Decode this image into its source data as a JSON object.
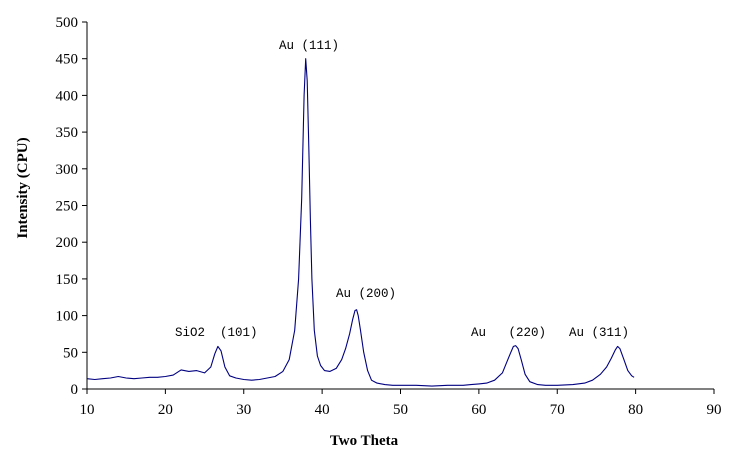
{
  "chart_data": {
    "type": "line",
    "title": "",
    "xlabel": "Two Theta",
    "ylabel": "Intensity (CPU)",
    "xlim": [
      10,
      90
    ],
    "ylim": [
      0,
      500
    ],
    "xticks": [
      10,
      20,
      30,
      40,
      50,
      60,
      70,
      80,
      90
    ],
    "yticks": [
      0,
      50,
      100,
      150,
      200,
      250,
      300,
      350,
      400,
      450,
      500
    ],
    "grid": false,
    "legend": "none",
    "line_color": "#000080",
    "series": [
      {
        "x": [
          10,
          11,
          12,
          13,
          14,
          15,
          16,
          17,
          18,
          19,
          20,
          21,
          22,
          23,
          24,
          25,
          25.8,
          26.3,
          26.7,
          27.1,
          27.6,
          28.2,
          29,
          30,
          31,
          32,
          33,
          34,
          35,
          35.8,
          36.5,
          37,
          37.4,
          37.7,
          37.9,
          38.1,
          38.3,
          38.5,
          38.7,
          39,
          39.4,
          39.8,
          40.3,
          41,
          41.8,
          42.5,
          43,
          43.5,
          43.9,
          44.2,
          44.4,
          44.6,
          44.9,
          45.3,
          45.8,
          46.3,
          47,
          48,
          49,
          50,
          52,
          54,
          56,
          58,
          59,
          60,
          61,
          62,
          63,
          63.5,
          64,
          64.4,
          64.7,
          65,
          65.4,
          65.9,
          66.5,
          67.5,
          68.5,
          70,
          72,
          73.5,
          74.5,
          75.5,
          76.3,
          76.9,
          77.4,
          77.7,
          78,
          78.5,
          79,
          79.5,
          79.8
        ],
        "y": [
          14,
          13,
          14,
          15,
          17,
          15,
          14,
          15,
          16,
          16,
          17,
          19,
          26,
          24,
          25,
          22,
          30,
          48,
          58,
          52,
          30,
          18,
          15,
          13,
          12,
          13,
          15,
          17,
          24,
          40,
          80,
          150,
          260,
          400,
          450,
          420,
          330,
          230,
          150,
          80,
          45,
          32,
          25,
          24,
          28,
          40,
          55,
          75,
          95,
          107,
          108,
          100,
          80,
          50,
          25,
          12,
          8,
          6,
          5,
          5,
          5,
          4,
          5,
          5,
          6,
          7,
          8,
          12,
          22,
          35,
          48,
          58,
          59,
          55,
          40,
          20,
          10,
          6,
          5,
          5,
          6,
          8,
          12,
          20,
          30,
          42,
          53,
          58,
          55,
          40,
          25,
          18,
          16
        ]
      }
    ],
    "annotations": [
      "Au (111)",
      "Au (200)",
      "SiO2  (101)",
      "Au   (220)",
      "Au (311)"
    ]
  }
}
